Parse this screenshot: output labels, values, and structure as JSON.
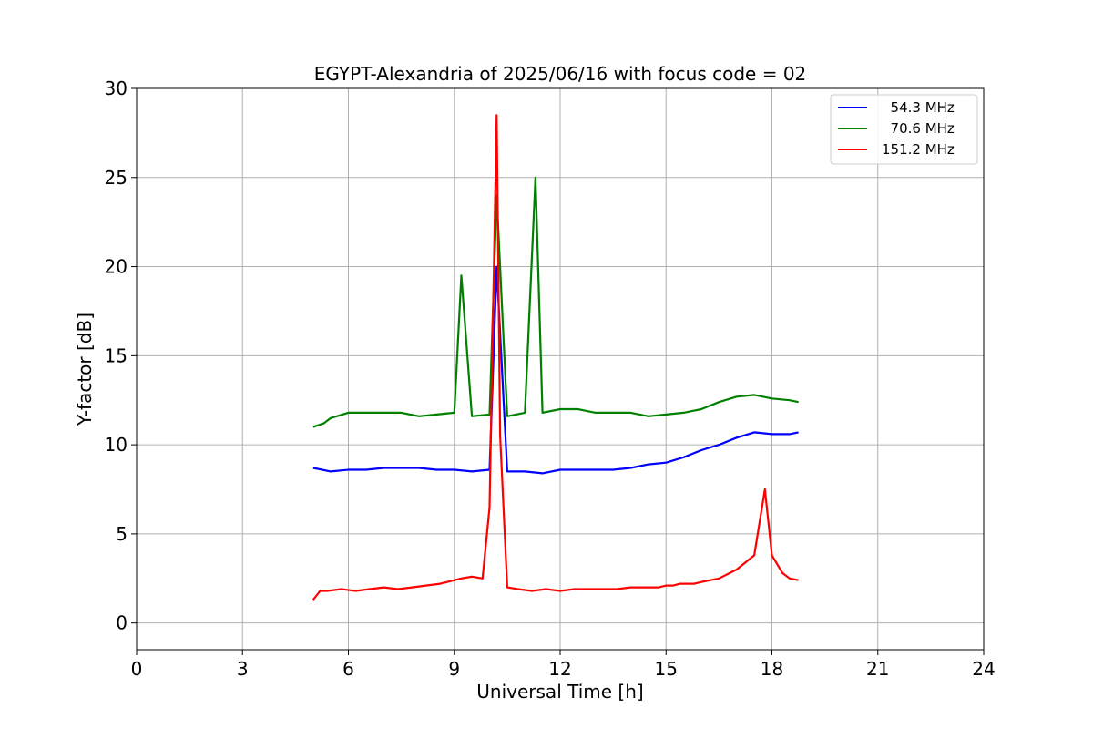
{
  "chart_data": {
    "type": "line",
    "title": "EGYPT-Alexandria of 2025/06/16 with focus code = 02",
    "xlabel": "Universal Time [h]",
    "ylabel": "Y-factor [dB]",
    "xlim": [
      0,
      24
    ],
    "ylim": [
      -1.5,
      30
    ],
    "xticks": [
      0,
      3,
      6,
      9,
      12,
      15,
      18,
      21,
      24
    ],
    "yticks": [
      0,
      5,
      10,
      15,
      20,
      25,
      30
    ],
    "grid": true,
    "legend_position": "top-right",
    "series": [
      {
        "name": "  54.3 MHz",
        "color": "#0000ff",
        "x": [
          5.0,
          5.5,
          6.0,
          6.5,
          7.0,
          7.5,
          8.0,
          8.5,
          9.0,
          9.5,
          10.0,
          10.2,
          10.5,
          11.0,
          11.5,
          12.0,
          12.5,
          13.0,
          13.5,
          14.0,
          14.5,
          15.0,
          15.5,
          16.0,
          16.5,
          17.0,
          17.5,
          18.0,
          18.5,
          18.75
        ],
        "y": [
          8.7,
          8.5,
          8.6,
          8.6,
          8.7,
          8.7,
          8.7,
          8.6,
          8.6,
          8.5,
          8.6,
          20.0,
          8.5,
          8.5,
          8.4,
          8.6,
          8.6,
          8.6,
          8.6,
          8.7,
          8.9,
          9.0,
          9.3,
          9.7,
          10.0,
          10.4,
          10.7,
          10.6,
          10.6,
          10.7
        ]
      },
      {
        "name": "  70.6 MHz",
        "color": "#008000",
        "x": [
          5.0,
          5.3,
          5.5,
          6.0,
          6.5,
          7.0,
          7.5,
          8.0,
          8.5,
          9.0,
          9.2,
          9.5,
          10.0,
          10.2,
          10.5,
          11.0,
          11.3,
          11.5,
          12.0,
          12.5,
          13.0,
          13.5,
          14.0,
          14.5,
          15.0,
          15.5,
          16.0,
          16.5,
          17.0,
          17.5,
          18.0,
          18.5,
          18.75
        ],
        "y": [
          11.0,
          11.2,
          11.5,
          11.8,
          11.8,
          11.8,
          11.8,
          11.6,
          11.7,
          11.8,
          19.5,
          11.6,
          11.7,
          24.0,
          11.6,
          11.8,
          25.0,
          11.8,
          12.0,
          12.0,
          11.8,
          11.8,
          11.8,
          11.6,
          11.7,
          11.8,
          12.0,
          12.4,
          12.7,
          12.8,
          12.6,
          12.5,
          12.4
        ]
      },
      {
        "name": "151.2 MHz",
        "color": "#ff0000",
        "x": [
          5.0,
          5.2,
          5.4,
          5.8,
          6.2,
          6.6,
          7.0,
          7.4,
          7.8,
          8.2,
          8.6,
          8.8,
          9.0,
          9.2,
          9.5,
          9.8,
          10.0,
          10.2,
          10.3,
          10.5,
          10.8,
          11.2,
          11.6,
          12.0,
          12.4,
          12.8,
          13.2,
          13.6,
          14.0,
          14.4,
          14.8,
          15.0,
          15.2,
          15.4,
          15.8,
          16.0,
          16.5,
          17.0,
          17.5,
          17.8,
          18.0,
          18.3,
          18.5,
          18.75
        ],
        "y": [
          1.3,
          1.8,
          1.8,
          1.9,
          1.8,
          1.9,
          2.0,
          1.9,
          2.0,
          2.1,
          2.2,
          2.3,
          2.4,
          2.5,
          2.6,
          2.5,
          6.5,
          28.5,
          10.5,
          2.0,
          1.9,
          1.8,
          1.9,
          1.8,
          1.9,
          1.9,
          1.9,
          1.9,
          2.0,
          2.0,
          2.0,
          2.1,
          2.1,
          2.2,
          2.2,
          2.3,
          2.5,
          3.0,
          3.8,
          7.5,
          3.8,
          2.8,
          2.5,
          2.4
        ]
      }
    ]
  }
}
